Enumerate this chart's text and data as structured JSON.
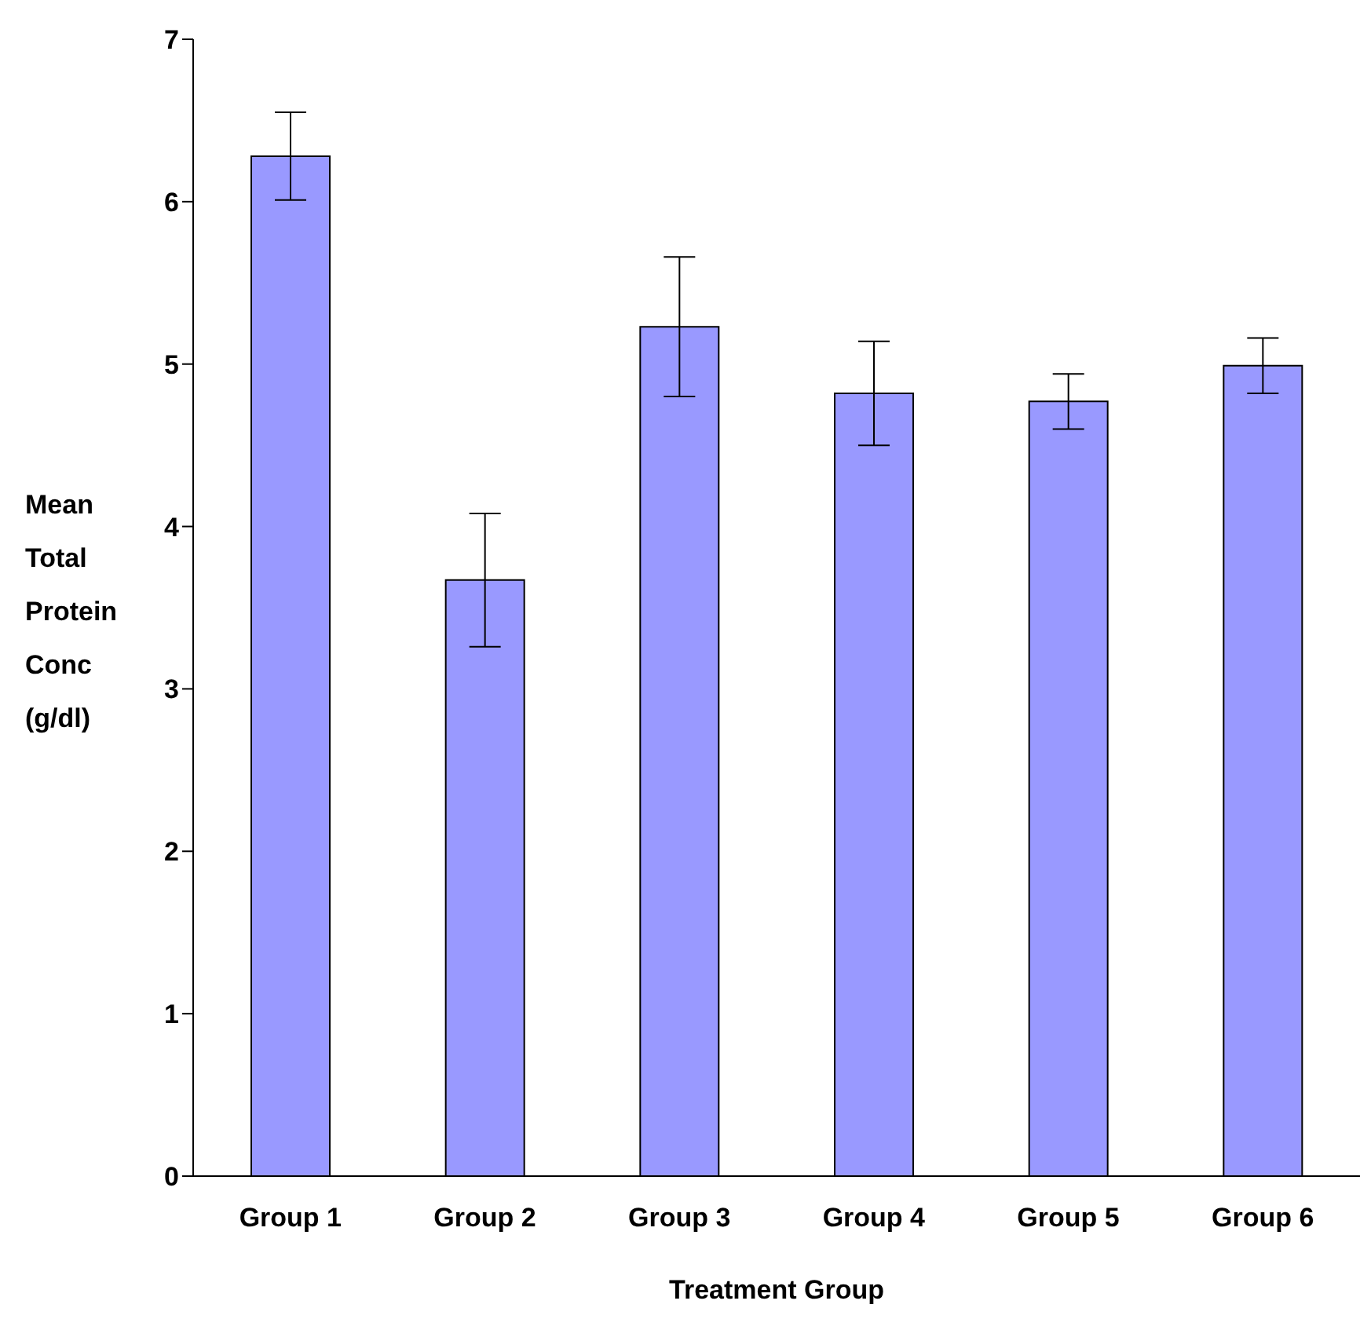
{
  "chart_data": {
    "type": "bar",
    "xlabel": "Treatment Group",
    "ylabel": "Mean Total Protein Conc (g/dl)",
    "categories": [
      "Group 1",
      "Group 2",
      "Group 3",
      "Group 4",
      "Group 5",
      "Group 6"
    ],
    "values": [
      6.28,
      3.67,
      5.23,
      4.82,
      4.77,
      4.99
    ],
    "errors": [
      0.27,
      0.41,
      0.43,
      0.32,
      0.17,
      0.17
    ],
    "color": "#9999ff",
    "ylim": [
      0,
      7
    ],
    "yticks": [
      0,
      1,
      2,
      3,
      4,
      5,
      6,
      7
    ],
    "grid": false
  }
}
